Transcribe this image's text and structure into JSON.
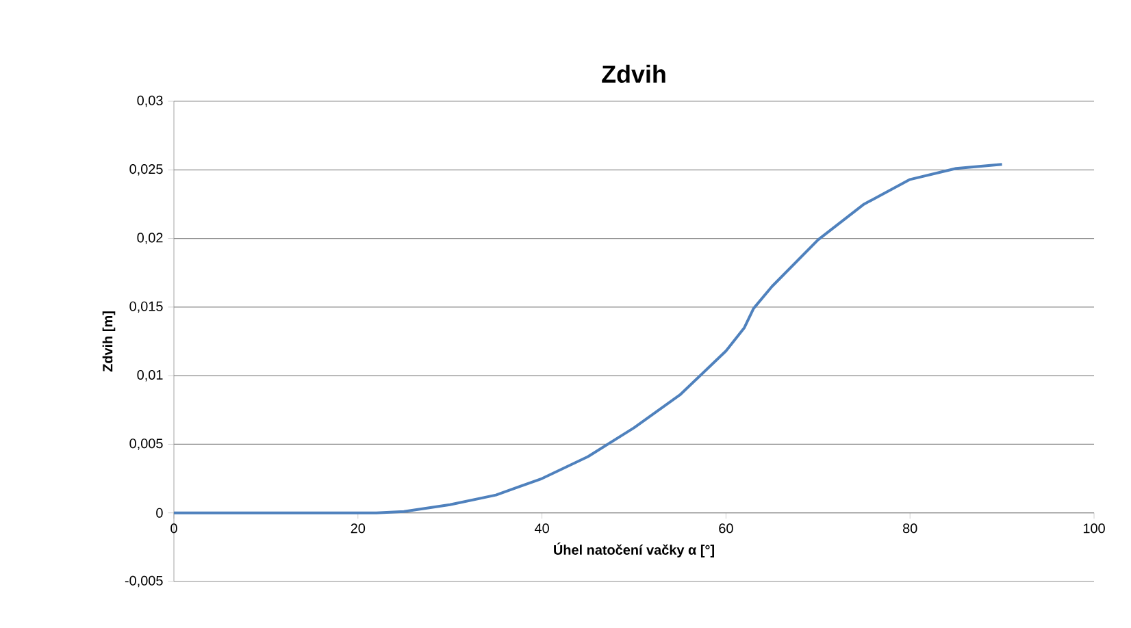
{
  "chart_data": {
    "type": "line",
    "title": "Zdvih",
    "xlabel": "Úhel natočení vačky α [°]",
    "ylabel": "Zdvih [m]",
    "x": [
      0,
      5,
      10,
      15,
      20,
      22,
      25,
      30,
      35,
      40,
      45,
      50,
      55,
      60,
      62,
      63,
      65,
      70,
      75,
      80,
      85,
      90
    ],
    "series": [
      {
        "color": "#4f81bd",
        "values": [
          0,
          0,
          0,
          0,
          0,
          0,
          0.0001,
          0.0006,
          0.0013,
          0.0025,
          0.0041,
          0.0062,
          0.0086,
          0.0118,
          0.0135,
          0.0149,
          0.0165,
          0.0199,
          0.0225,
          0.0243,
          0.0251,
          0.0254
        ]
      }
    ],
    "xlim": [
      0,
      100
    ],
    "xticks": [
      0,
      20,
      40,
      60,
      80,
      100
    ],
    "ylim": [
      -0.005,
      0.03
    ],
    "yticks": [
      {
        "value": -0.005,
        "label": "-0,005"
      },
      {
        "value": 0,
        "label": "0"
      },
      {
        "value": 0.005,
        "label": "0,005"
      },
      {
        "value": 0.01,
        "label": "0,01"
      },
      {
        "value": 0.015,
        "label": "0,015"
      },
      {
        "value": 0.02,
        "label": "0,02"
      },
      {
        "value": 0.025,
        "label": "0,025"
      },
      {
        "value": 0.03,
        "label": "0,03"
      }
    ],
    "grid": "y",
    "marker": "none",
    "line_style": "solid"
  }
}
